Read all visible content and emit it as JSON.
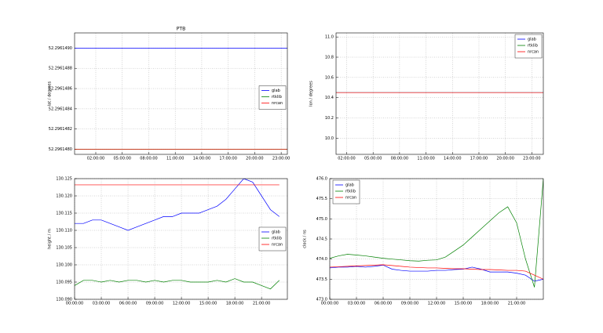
{
  "chart_data": [
    {
      "type": "line",
      "title": "PTB",
      "ylabel": "lat / degrees",
      "x": [
        -0.4,
        23.7
      ],
      "xlim": [
        -0.4,
        23.7
      ],
      "xticks": [
        {
          "value": 2,
          "label": "02:00:00"
        },
        {
          "value": 5,
          "label": "05:00:00"
        },
        {
          "value": 8,
          "label": "08:00:00"
        },
        {
          "value": 11,
          "label": "11:00:00"
        },
        {
          "value": 14,
          "label": "14:00:00"
        },
        {
          "value": 17,
          "label": "17:00:00"
        },
        {
          "value": 20,
          "label": "20:00:00"
        },
        {
          "value": 23,
          "label": "23:00:00"
        }
      ],
      "ylim": [
        52.29614795,
        52.29614915
      ],
      "yticks": [
        {
          "value": 52.296148,
          "label": "52.2961480"
        },
        {
          "value": 52.2961482,
          "label": "52.2961482"
        },
        {
          "value": 52.2961484,
          "label": "52.2961484"
        },
        {
          "value": 52.2961486,
          "label": "52.2961486"
        },
        {
          "value": 52.2961488,
          "label": "52.2961488"
        },
        {
          "value": 52.296149,
          "label": "52.2961490"
        }
      ],
      "grid": true,
      "legend": "center right",
      "series": [
        {
          "name": "glab",
          "color": "#0000ff",
          "values": [
            52.296149,
            52.296149
          ]
        },
        {
          "name": "rtklib",
          "color": "#008000",
          "values": [
            52.296148,
            52.296148
          ]
        },
        {
          "name": "nrcan",
          "color": "#ff0000",
          "values": [
            52.296148,
            52.296148
          ]
        }
      ]
    },
    {
      "type": "line",
      "ylabel": "lon / degrees",
      "x": [
        0.8,
        24.3
      ],
      "xlim": [
        0.8,
        24.3
      ],
      "xticks": [
        {
          "value": 2,
          "label": "02:00:00"
        },
        {
          "value": 5,
          "label": "05:00:00"
        },
        {
          "value": 8,
          "label": "08:00:00"
        },
        {
          "value": 11,
          "label": "11:00:00"
        },
        {
          "value": 14,
          "label": "14:00:00"
        },
        {
          "value": 17,
          "label": "17:00:00"
        },
        {
          "value": 20,
          "label": "20:00:00"
        },
        {
          "value": 23,
          "label": "23:00:00"
        }
      ],
      "ylim": [
        9.84,
        11.04
      ],
      "yticks": [
        {
          "value": 10,
          "label": "10.0"
        },
        10.2,
        10.4,
        10.6,
        10.8,
        {
          "value": 11,
          "label": "11.0"
        }
      ],
      "grid": true,
      "legend": "upper right",
      "series": [
        {
          "name": "glab",
          "color": "#0000ff",
          "values": [
            10.45,
            10.45
          ]
        },
        {
          "name": "rtklib",
          "color": "#008000",
          "values": [
            10.45,
            10.45
          ]
        },
        {
          "name": "nrcan",
          "color": "#ff0000",
          "values": [
            10.45,
            10.45
          ]
        }
      ]
    },
    {
      "type": "line",
      "ylabel": "height / m",
      "x": [
        0,
        1,
        2,
        3,
        4,
        5,
        6,
        7,
        8,
        9,
        10,
        11,
        12,
        13,
        14,
        15,
        16,
        17,
        18,
        19,
        20,
        21,
        22,
        23
      ],
      "xlim": [
        0,
        23.9
      ],
      "xticks": [
        {
          "value": 0,
          "label": "00:00:00"
        },
        {
          "value": 3,
          "label": "03:00:00"
        },
        {
          "value": 6,
          "label": "06:00:00"
        },
        {
          "value": 9,
          "label": "09:00:00"
        },
        {
          "value": 12,
          "label": "12:00:00"
        },
        {
          "value": 15,
          "label": "15:00:00"
        },
        {
          "value": 18,
          "label": "18:00:00"
        },
        {
          "value": 21,
          "label": "21:00:00"
        }
      ],
      "ylim": [
        130.09,
        130.125
      ],
      "yticks": [
        {
          "value": 130.09,
          "label": "130.090"
        },
        130.095,
        {
          "value": 130.1,
          "label": "130.100"
        },
        130.105,
        {
          "value": 130.11,
          "label": "130.110"
        },
        130.115,
        {
          "value": 130.12,
          "label": "130.120"
        },
        130.125
      ],
      "grid": true,
      "legend": "lower right",
      "series": [
        {
          "name": "glab",
          "color": "#0000ff",
          "values": [
            130.112,
            130.112,
            130.113,
            130.113,
            130.112,
            130.111,
            130.11,
            130.111,
            130.112,
            130.113,
            130.114,
            130.114,
            130.115,
            130.115,
            130.115,
            130.116,
            130.117,
            130.119,
            130.122,
            130.125,
            130.124,
            130.12,
            130.116,
            130.114
          ]
        },
        {
          "name": "rtklib",
          "color": "#008000",
          "values": [
            130.094,
            130.0955,
            130.0955,
            130.095,
            130.0955,
            130.095,
            130.0955,
            130.0955,
            130.095,
            130.0955,
            130.095,
            130.0955,
            130.0955,
            130.095,
            130.095,
            130.095,
            130.0955,
            130.095,
            130.096,
            130.095,
            130.095,
            130.094,
            130.093,
            130.0955
          ]
        },
        {
          "name": "nrcan",
          "color": "#ff0000",
          "values": [
            130.1232,
            130.1232,
            130.1232,
            130.1232,
            130.1232,
            130.1232,
            130.1232,
            130.1232,
            130.1232,
            130.1232,
            130.1232,
            130.1232,
            130.1232,
            130.1232,
            130.1232,
            130.1232,
            130.1232,
            130.1232,
            130.1232,
            130.1232,
            130.1232,
            130.1232,
            130.1232,
            130.1232
          ]
        }
      ]
    },
    {
      "type": "line",
      "ylabel": "clock / ns",
      "x": [
        0,
        1,
        2,
        3,
        4,
        5,
        6,
        7,
        8,
        9,
        10,
        11,
        12,
        13,
        14,
        15,
        16,
        17,
        18,
        19,
        20,
        21,
        22,
        23,
        24
      ],
      "xlim": [
        0,
        24
      ],
      "xticks": [
        {
          "value": 0,
          "label": "00:00:00"
        },
        {
          "value": 3,
          "label": "03:00:00"
        },
        {
          "value": 6,
          "label": "06:00:00"
        },
        {
          "value": 9,
          "label": "09:00:00"
        },
        {
          "value": 12,
          "label": "12:00:00"
        },
        {
          "value": 15,
          "label": "15:00:00"
        },
        {
          "value": 18,
          "label": "18:00:00"
        },
        {
          "value": 21,
          "label": "21:00:00"
        }
      ],
      "ylim": [
        473,
        476
      ],
      "yticks": [
        {
          "value": 473,
          "label": "473.0"
        },
        473.5,
        {
          "value": 474,
          "label": "474.0"
        },
        474.5,
        {
          "value": 475,
          "label": "475.0"
        },
        475.5,
        {
          "value": 476,
          "label": "476.0"
        }
      ],
      "grid": true,
      "legend": "upper left",
      "series": [
        {
          "name": "glab",
          "color": "#0000ff",
          "values": [
            473.78,
            473.8,
            473.8,
            473.82,
            473.8,
            473.82,
            473.85,
            473.75,
            473.72,
            473.7,
            473.7,
            473.7,
            473.72,
            473.72,
            473.74,
            473.75,
            473.8,
            473.75,
            473.68,
            473.68,
            473.68,
            473.65,
            473.6,
            473.45,
            473.5
          ]
        },
        {
          "name": "rtklib",
          "color": "#008000",
          "values": [
            474.02,
            474.08,
            474.12,
            474.1,
            474.08,
            474.05,
            474.02,
            474,
            473.98,
            473.96,
            473.95,
            473.97,
            473.98,
            474.05,
            474.2,
            474.35,
            474.55,
            474.75,
            474.95,
            475.15,
            475.3,
            474.9,
            474,
            473.3,
            476
          ]
        },
        {
          "name": "nrcan",
          "color": "#ff0000",
          "values": [
            473.8,
            473.81,
            473.82,
            473.83,
            473.84,
            473.85,
            473.86,
            473.84,
            473.82,
            473.8,
            473.79,
            473.78,
            473.78,
            473.77,
            473.76,
            473.76,
            473.75,
            473.74,
            473.74,
            473.73,
            473.72,
            473.72,
            473.7,
            473.6,
            473.5
          ]
        }
      ]
    }
  ]
}
